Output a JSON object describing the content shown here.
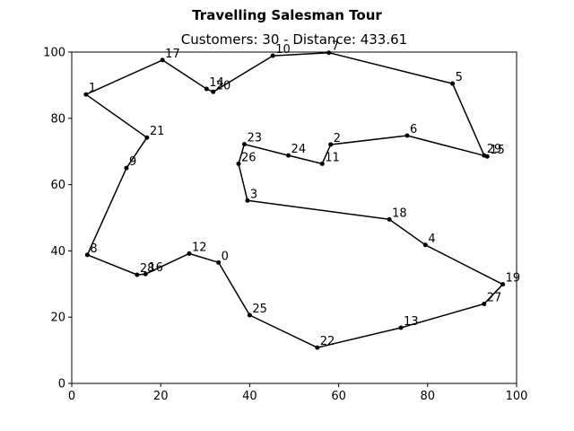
{
  "chart_data": {
    "type": "line",
    "title": "Travelling Salesman Tour",
    "subtitle": "Customers: 30 - Distance: 433.61",
    "xlabel": "",
    "ylabel": "",
    "xlim": [
      0,
      100
    ],
    "ylim": [
      0,
      100
    ],
    "x_ticks": [
      0,
      20,
      40,
      60,
      80,
      100
    ],
    "y_ticks": [
      0,
      20,
      40,
      60,
      80,
      100
    ],
    "grid": false,
    "points": [
      {
        "id": "0",
        "x": 33.0,
        "y": 36.5
      },
      {
        "id": "1",
        "x": 3.2,
        "y": 87.2
      },
      {
        "id": "2",
        "x": 58.2,
        "y": 72.1
      },
      {
        "id": "3",
        "x": 39.5,
        "y": 55.2
      },
      {
        "id": "4",
        "x": 79.5,
        "y": 41.8
      },
      {
        "id": "5",
        "x": 85.6,
        "y": 90.5
      },
      {
        "id": "6",
        "x": 75.4,
        "y": 74.8
      },
      {
        "id": "7",
        "x": 57.8,
        "y": 99.8
      },
      {
        "id": "8",
        "x": 3.5,
        "y": 38.8
      },
      {
        "id": "9",
        "x": 12.3,
        "y": 65.0
      },
      {
        "id": "10",
        "x": 45.2,
        "y": 98.9
      },
      {
        "id": "11",
        "x": 56.3,
        "y": 66.3
      },
      {
        "id": "12",
        "x": 26.4,
        "y": 39.2
      },
      {
        "id": "13",
        "x": 74.0,
        "y": 16.8
      },
      {
        "id": "14",
        "x": 30.3,
        "y": 88.9
      },
      {
        "id": "15",
        "x": 93.4,
        "y": 68.5
      },
      {
        "id": "16",
        "x": 16.6,
        "y": 33.0
      },
      {
        "id": "17",
        "x": 20.4,
        "y": 97.6
      },
      {
        "id": "18",
        "x": 71.4,
        "y": 49.5
      },
      {
        "id": "19",
        "x": 96.9,
        "y": 29.9
      },
      {
        "id": "20",
        "x": 31.8,
        "y": 88.0
      },
      {
        "id": "21",
        "x": 16.9,
        "y": 74.2
      },
      {
        "id": "22",
        "x": 55.2,
        "y": 10.8
      },
      {
        "id": "23",
        "x": 38.8,
        "y": 72.2
      },
      {
        "id": "24",
        "x": 48.7,
        "y": 68.8
      },
      {
        "id": "25",
        "x": 40.0,
        "y": 20.6
      },
      {
        "id": "26",
        "x": 37.5,
        "y": 66.3
      },
      {
        "id": "27",
        "x": 92.7,
        "y": 24.0
      },
      {
        "id": "28",
        "x": 14.7,
        "y": 32.8
      },
      {
        "id": "29",
        "x": 92.7,
        "y": 68.8
      }
    ],
    "tour": [
      0,
      12,
      16,
      28,
      8,
      9,
      21,
      1,
      17,
      14,
      20,
      10,
      7,
      5,
      29,
      15,
      6,
      2,
      11,
      24,
      23,
      26,
      3,
      18,
      4,
      19,
      27,
      13,
      22,
      25,
      0
    ]
  }
}
